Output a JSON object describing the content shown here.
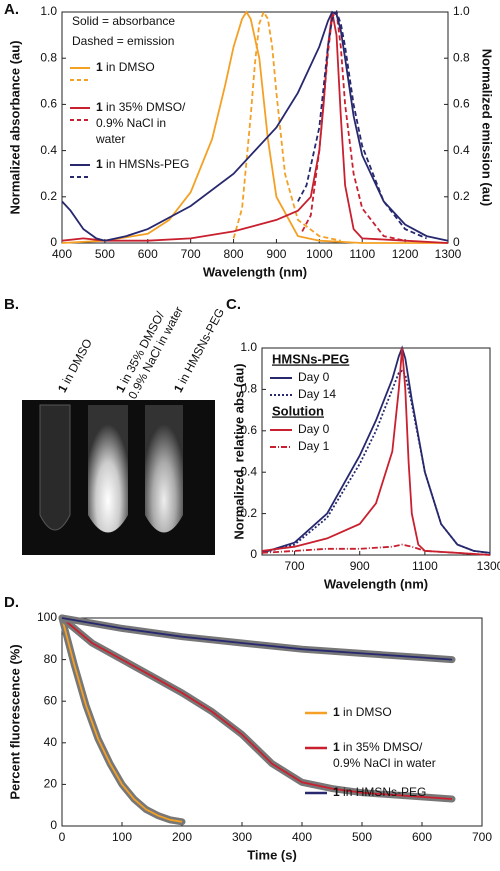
{
  "chart_data": [
    {
      "type": "line",
      "panel_label": "A.",
      "xlabel": "Wavelength (nm)",
      "ylabel": "Normalized absorbance (au)",
      "y2label": "Normalized emission (au)",
      "xlim": [
        400,
        1300
      ],
      "xticks": [
        400,
        500,
        600,
        700,
        800,
        900,
        1000,
        1100,
        1200,
        1300
      ],
      "ylim": [
        0,
        1
      ],
      "yticks": [
        0,
        0.2,
        0.4,
        0.6,
        0.8,
        {
          "value": 1,
          "label": "1.0"
        }
      ],
      "y2lim": [
        0,
        1
      ],
      "y2ticks": [
        0,
        0.2,
        0.4,
        0.6,
        0.8,
        {
          "value": 1,
          "label": "1.0"
        }
      ],
      "legend_notes": [
        "Solid = absorbance",
        "Dashed = emission"
      ],
      "series": [
        {
          "name": "1 in DMSO",
          "color": "#f4a024",
          "absorbance": {
            "x": [
              400,
              500,
              600,
              650,
              700,
              750,
              780,
              800,
              820,
              830,
              840,
              860,
              880,
              900,
              950,
              1000,
              1100,
              1300
            ],
            "values": [
              0,
              0.01,
              0.04,
              0.1,
              0.22,
              0.45,
              0.68,
              0.85,
              0.97,
              1.0,
              0.97,
              0.8,
              0.45,
              0.2,
              0.03,
              0.01,
              0,
              0
            ]
          },
          "emission": {
            "axis": "y2",
            "x": [
              800,
              820,
              840,
              850,
              860,
              870,
              880,
              890,
              900,
              920,
              950,
              1000,
              1050
            ],
            "values": [
              0.02,
              0.15,
              0.55,
              0.78,
              0.95,
              1.0,
              0.97,
              0.85,
              0.65,
              0.3,
              0.1,
              0.03,
              0.01
            ]
          }
        },
        {
          "name": "1 in 35% DMSO/ 0.9% NaCl in water",
          "color": "#c8202f",
          "absorbance": {
            "x": [
              400,
              450,
              500,
              600,
              700,
              800,
              900,
              950,
              980,
              1000,
              1010,
              1020,
              1030,
              1040,
              1050,
              1060,
              1080,
              1100,
              1200,
              1300
            ],
            "values": [
              0.01,
              0.02,
              0.01,
              0.01,
              0.02,
              0.05,
              0.1,
              0.14,
              0.2,
              0.4,
              0.6,
              0.85,
              1.0,
              0.9,
              0.55,
              0.25,
              0.06,
              0.02,
              0.01,
              0
            ]
          },
          "emission": {
            "axis": "y2",
            "x": [
              960,
              980,
              1000,
              1020,
              1030,
              1040,
              1050,
              1060,
              1080,
              1100,
              1150,
              1200
            ],
            "values": [
              0.05,
              0.12,
              0.4,
              0.82,
              0.98,
              1.0,
              0.85,
              0.6,
              0.3,
              0.15,
              0.03,
              0.01
            ]
          }
        },
        {
          "name": "1 in HMSNs-PEG",
          "color": "#27286e",
          "absorbance": {
            "x": [
              400,
              420,
              450,
              480,
              500,
              550,
              600,
              700,
              800,
              900,
              950,
              1000,
              1020,
              1030,
              1040,
              1050,
              1060,
              1080,
              1100,
              1150,
              1200,
              1250,
              1300
            ],
            "values": [
              0.18,
              0.14,
              0.06,
              0.02,
              0.01,
              0.03,
              0.06,
              0.16,
              0.3,
              0.5,
              0.65,
              0.85,
              0.96,
              1.0,
              0.99,
              0.92,
              0.8,
              0.55,
              0.38,
              0.18,
              0.08,
              0.03,
              0.01
            ]
          },
          "emission": {
            "axis": "y2",
            "x": [
              950,
              970,
              1000,
              1020,
              1030,
              1040,
              1050,
              1060,
              1080,
              1100,
              1150,
              1200,
              1250
            ],
            "values": [
              0.18,
              0.25,
              0.5,
              0.85,
              0.97,
              1.0,
              0.95,
              0.85,
              0.6,
              0.42,
              0.18,
              0.06,
              0.02
            ]
          }
        }
      ]
    },
    {
      "type": "image",
      "panel_label": "B.",
      "labels": [
        "1 in DMSO",
        "1 in 35% DMSO/ 0.9% NaCl in water",
        "1 in HMSNs-PEG"
      ]
    },
    {
      "type": "line",
      "panel_label": "C.",
      "xlabel": "Wavelength (nm)",
      "ylabel": "Normalized, relative abs (au)",
      "xlim": [
        600,
        1300
      ],
      "xticks": [
        700,
        900,
        1100,
        1300
      ],
      "ylim": [
        0,
        1
      ],
      "yticks": [
        0,
        0.2,
        0.4,
        0.6,
        0.8,
        {
          "value": 1,
          "label": "1.0"
        }
      ],
      "legend_groups": [
        "HMSNs-PEG",
        "Solution"
      ],
      "series": [
        {
          "name": "Day 0",
          "group": 0,
          "color": "#27286e",
          "style": "solid",
          "x": [
            600,
            700,
            800,
            900,
            950,
            1000,
            1020,
            1030,
            1040,
            1060,
            1100,
            1150,
            1200,
            1250,
            1300
          ],
          "values": [
            0.01,
            0.06,
            0.2,
            0.48,
            0.65,
            0.85,
            0.96,
            1.0,
            0.95,
            0.75,
            0.4,
            0.15,
            0.05,
            0.02,
            0.01
          ]
        },
        {
          "name": "Day 14",
          "group": 0,
          "color": "#27286e",
          "style": "dotted",
          "x": [
            600,
            700,
            800,
            900,
            950,
            1000,
            1020,
            1030,
            1040,
            1060,
            1100,
            1150,
            1200,
            1250,
            1300
          ],
          "values": [
            0.01,
            0.05,
            0.18,
            0.44,
            0.6,
            0.8,
            0.88,
            0.89,
            0.87,
            0.73,
            0.4,
            0.15,
            0.05,
            0.02,
            0.01
          ]
        },
        {
          "name": "Day 0",
          "group": 1,
          "color": "#c8202f",
          "style": "solid",
          "x": [
            600,
            700,
            800,
            900,
            950,
            1000,
            1020,
            1030,
            1040,
            1050,
            1060,
            1080,
            1100,
            1200,
            1300
          ],
          "values": [
            0.02,
            0.04,
            0.08,
            0.15,
            0.25,
            0.5,
            0.8,
            1.0,
            0.8,
            0.45,
            0.2,
            0.05,
            0.02,
            0.01,
            0
          ]
        },
        {
          "name": "Day 1",
          "group": 1,
          "color": "#c8202f",
          "style": "dashdot",
          "x": [
            600,
            700,
            800,
            900,
            1000,
            1030,
            1060,
            1100,
            1200,
            1300
          ],
          "values": [
            0.01,
            0.02,
            0.03,
            0.03,
            0.04,
            0.05,
            0.04,
            0.02,
            0.01,
            0
          ]
        }
      ]
    },
    {
      "type": "line",
      "panel_label": "D.",
      "xlabel": "Time (s)",
      "ylabel": "Percent fluorescence (%)",
      "xlim": [
        0,
        700
      ],
      "xticks": [
        0,
        100,
        200,
        300,
        400,
        500,
        600,
        700
      ],
      "ylim": [
        0,
        100
      ],
      "yticks": [
        0,
        20,
        40,
        60,
        80,
        100
      ],
      "series": [
        {
          "name": "1 in DMSO",
          "color": "#f4a024",
          "x": [
            0,
            20,
            40,
            60,
            80,
            100,
            120,
            140,
            160,
            180,
            200
          ],
          "values": [
            100,
            78,
            58,
            42,
            30,
            20,
            13,
            8,
            5,
            3,
            2
          ]
        },
        {
          "name": "1 in 35% DMSO/ 0.9% NaCl in water",
          "color": "#c8202f",
          "x": [
            0,
            50,
            100,
            150,
            200,
            250,
            300,
            350,
            400,
            450,
            500,
            550,
            600,
            650
          ],
          "values": [
            100,
            88,
            80,
            72,
            64,
            55,
            44,
            30,
            21,
            18,
            16,
            15,
            14,
            13
          ]
        },
        {
          "name": "1 in HMSNs-PEG",
          "color": "#27286e",
          "x": [
            0,
            100,
            200,
            300,
            400,
            500,
            600,
            650
          ],
          "values": [
            100,
            95,
            91,
            88,
            85,
            83,
            81,
            80
          ]
        }
      ]
    }
  ]
}
